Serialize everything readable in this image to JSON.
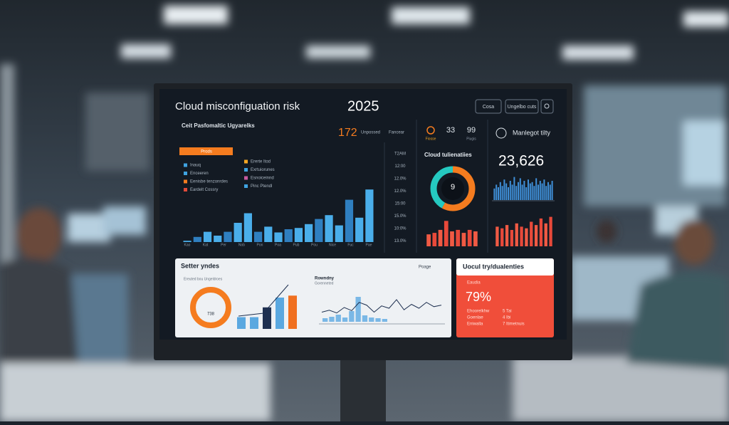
{
  "header": {
    "title": "Cloud misconfiguation risk",
    "year": "2025",
    "buttons": [
      "Cosa",
      "Ungelbo cuts"
    ]
  },
  "overview": {
    "subtitle": "Ceit Pasfomaltic Ugyarelks",
    "button": "Prods",
    "legend": [
      "Inauq",
      "Ererte Itod",
      "Enceeren",
      "Exrtuiorunes",
      "Eenisbe tenzonrdes",
      "Esnoiceinnd",
      "Eardelt Cossry",
      "Pinc Ptendl"
    ],
    "bars": {
      "ylim": [
        0,
        100
      ],
      "values": [
        2,
        8,
        16,
        10,
        16,
        30,
        45,
        16,
        24,
        15,
        20,
        22,
        28,
        36,
        42,
        26,
        66,
        38,
        82
      ]
    },
    "x_labels": [
      "Kao",
      "Kat",
      "Per",
      "Nob",
      "Pon",
      "Poa",
      "Pub",
      "Pou",
      "Nice",
      "Fuc",
      "Pae"
    ],
    "axis_labels": [
      "T2AM",
      "12:00",
      "12.0%",
      "12.0%",
      "15:00",
      "15.0%",
      "10:0%",
      "13.0%"
    ]
  },
  "stats": {
    "count": "172",
    "count_labels": [
      "Unpossed",
      "Fancear"
    ],
    "metric_a": "33",
    "metric_b": "99",
    "metric_labels": [
      "Fiosse",
      "Piugis"
    ],
    "manage": "Manlegot tilty"
  },
  "cloud": {
    "title": "Cloud tulienatiies",
    "center": "9",
    "donut": {
      "values": [
        58,
        42
      ],
      "colors": [
        "#f57c1f",
        "#25c9c0"
      ]
    },
    "bars": {
      "ylim": [
        0,
        100
      ],
      "values": [
        40,
        45,
        55,
        85,
        50,
        55,
        45,
        55,
        50
      ]
    }
  },
  "trend": {
    "value": "23,626",
    "spark": {
      "ylim": [
        0,
        100
      ],
      "values": [
        45,
        60,
        50,
        70,
        55,
        80,
        65,
        50,
        75,
        60,
        90,
        55,
        70,
        85,
        60,
        75,
        50,
        80,
        65,
        70,
        55,
        85,
        60,
        75,
        65,
        80,
        55,
        70,
        60,
        75
      ]
    },
    "bars": {
      "ylim": [
        0,
        100
      ],
      "values": [
        60,
        55,
        65,
        50,
        70,
        60,
        55,
        75,
        65,
        85,
        70,
        90
      ]
    }
  },
  "setter": {
    "title": "Setter yndes",
    "dropdown": "Poage",
    "donut_label": "738",
    "donut_caption": "Ereuted bou Ungeldroes",
    "bars": {
      "ylim": [
        0,
        100
      ],
      "values": [
        30,
        30,
        55,
        80,
        85
      ],
      "colors": [
        "#5aa8e0",
        "#5aa8e0",
        "#1e3050",
        "#5aa8e0",
        "#f07020"
      ]
    },
    "chart_title": "Rowndny",
    "chart_subtitle": "Gorenneted",
    "line": {
      "ylim": [
        0,
        100
      ],
      "values": [
        30,
        35,
        28,
        42,
        34,
        55,
        48,
        30,
        46,
        40,
        62,
        36,
        50,
        40,
        55,
        44,
        48
      ]
    },
    "columns": {
      "ylim": [
        0,
        100
      ],
      "values": [
        10,
        14,
        20,
        12,
        30,
        70,
        18,
        12,
        10,
        8
      ]
    }
  },
  "vuln": {
    "title": "Uocul try/dualenties",
    "label": "Eaudia",
    "value": "79%",
    "rows": [
      "Ehoorelkhw",
      "Goenlae",
      "Eniwalla",
      "5 Tai",
      "4 Ibi",
      "7 Itimetnuis"
    ]
  }
}
